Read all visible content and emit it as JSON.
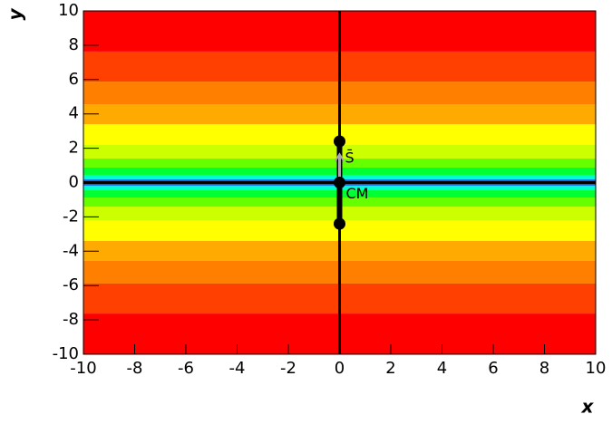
{
  "chart_data": {
    "type": "contour",
    "x_label": "x",
    "y_label": "y",
    "xlim": [
      -10,
      10
    ],
    "ylim": [
      -10,
      10
    ],
    "xticks": [
      -10,
      -8,
      -6,
      -4,
      -2,
      0,
      2,
      4,
      6,
      8,
      10
    ],
    "yticks": [
      -10,
      -8,
      -6,
      -4,
      -2,
      0,
      2,
      4,
      6,
      8,
      10
    ],
    "levels": [
      0.18,
      0.45,
      0.87,
      1.4,
      2.19,
      3.4,
      4.56,
      5.88,
      7.63
    ],
    "colors": [
      "#0066ff",
      "#00ffcc",
      "#00ff33",
      "#66ff00",
      "#ccff00",
      "#ffff00",
      "#ffaa00",
      "#ff8000",
      "#ff4000",
      "#ff0000"
    ],
    "axis_lines": {
      "x": 0,
      "y": 0
    },
    "points": {
      "x": [
        0,
        0,
        0
      ],
      "y": [
        2.4,
        0,
        -2.4
      ]
    },
    "annotations": [
      {
        "text": "S̄",
        "x": 0,
        "y": 1.6
      },
      {
        "text": "CM",
        "x": 0,
        "y": 0
      }
    ]
  }
}
